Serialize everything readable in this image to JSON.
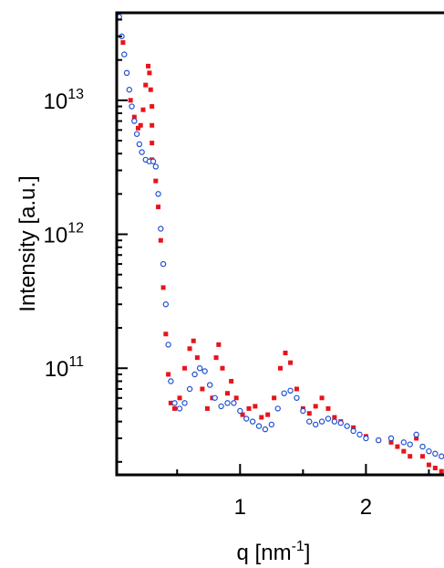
{
  "chart_data": {
    "type": "scatter",
    "y_label": "Intensity [a.u.]",
    "x_label": {
      "text": "q [nm",
      "superscript": "-1",
      "suffix": "]"
    },
    "xlim": [
      0.02,
      2.62
    ],
    "xticks": [
      1,
      2
    ],
    "x_minor_ticks": [
      0.5,
      1.5,
      2.5
    ],
    "ylim": [
      16000000000.0,
      45000000000000.0
    ],
    "log_y": true,
    "yticks": [
      {
        "value": 100000000000.0,
        "label": "10",
        "exponent": "11"
      },
      {
        "value": 1000000000000.0,
        "label": "10",
        "exponent": "12"
      },
      {
        "value": 10000000000000.0,
        "label": "10",
        "exponent": "13"
      }
    ],
    "y_minor_ticks": [
      20000000000.0,
      30000000000.0,
      40000000000.0,
      50000000000.0,
      60000000000.0,
      70000000000.0,
      80000000000.0,
      90000000000.0,
      200000000000.0,
      300000000000.0,
      400000000000.0,
      500000000000.0,
      600000000000.0,
      700000000000.0,
      800000000000.0,
      900000000000.0,
      2000000000000.0,
      3000000000000.0,
      4000000000000.0,
      5000000000000.0,
      6000000000000.0,
      7000000000000.0,
      8000000000000.0,
      9000000000000.0,
      20000000000000.0,
      30000000000000.0,
      40000000000000.0
    ],
    "series": [
      {
        "color": "#e8141a",
        "marker": "square",
        "x": [
          0.04,
          0.07,
          0.1,
          0.13,
          0.16,
          0.19,
          0.21,
          0.23,
          0.25,
          0.27,
          0.28,
          0.29,
          0.3,
          0.3,
          0.3,
          0.3,
          0.33,
          0.35,
          0.37,
          0.39,
          0.41,
          0.43,
          0.45,
          0.48,
          0.52,
          0.56,
          0.6,
          0.63,
          0.66,
          0.7,
          0.74,
          0.78,
          0.81,
          0.83,
          0.86,
          0.9,
          0.93,
          0.97,
          1.02,
          1.07,
          1.12,
          1.17,
          1.22,
          1.27,
          1.32,
          1.36,
          1.4,
          1.45,
          1.5,
          1.55,
          1.6,
          1.65,
          1.7,
          1.75,
          1.8,
          1.9,
          2.0,
          2.1,
          2.2,
          2.25,
          2.3,
          2.35,
          2.4,
          2.45,
          2.5,
          2.55,
          2.6
        ],
        "values": [
          42000000000000.0,
          27000000000000.0,
          16000000000000.0,
          10000000000000.0,
          7500000000000.0,
          6200000000000.0,
          6500000000000.0,
          8500000000000.0,
          13000000000000.0,
          18000000000000.0,
          16000000000000.0,
          12000000000000.0,
          9000000000000.0,
          6500000000000.0,
          4800000000000.0,
          3600000000000.0,
          2500000000000.0,
          1600000000000.0,
          900000000000.0,
          400000000000.0,
          180000000000.0,
          90000000000.0,
          55000000000.0,
          50000000000.0,
          60000000000.0,
          100000000000.0,
          140000000000.0,
          160000000000.0,
          120000000000.0,
          70000000000.0,
          50000000000.0,
          60000000000.0,
          120000000000.0,
          150000000000.0,
          100000000000.0,
          65000000000.0,
          80000000000.0,
          60000000000.0,
          45000000000.0,
          50000000000.0,
          52000000000.0,
          43000000000.0,
          45000000000.0,
          60000000000.0,
          100000000000.0,
          130000000000.0,
          110000000000.0,
          70000000000.0,
          50000000000.0,
          46000000000.0,
          52000000000.0,
          60000000000.0,
          50000000000.0,
          43000000000.0,
          40000000000.0,
          36000000000.0,
          31000000000.0,
          29000000000.0,
          28000000000.0,
          26000000000.0,
          24000000000.0,
          22000000000.0,
          30000000000.0,
          22000000000.0,
          19000000000.0,
          18000000000.0,
          17000000000.0
        ]
      },
      {
        "color": "#1f4fd1",
        "marker": "open-circle",
        "x": [
          0.04,
          0.06,
          0.08,
          0.1,
          0.12,
          0.14,
          0.16,
          0.18,
          0.2,
          0.22,
          0.25,
          0.28,
          0.31,
          0.33,
          0.35,
          0.37,
          0.39,
          0.41,
          0.43,
          0.45,
          0.48,
          0.52,
          0.56,
          0.6,
          0.64,
          0.68,
          0.72,
          0.76,
          0.8,
          0.85,
          0.9,
          0.95,
          1.0,
          1.05,
          1.1,
          1.15,
          1.2,
          1.25,
          1.3,
          1.35,
          1.4,
          1.45,
          1.5,
          1.55,
          1.6,
          1.65,
          1.7,
          1.75,
          1.8,
          1.85,
          1.9,
          1.95,
          2.0,
          2.1,
          2.2,
          2.3,
          2.35,
          2.4,
          2.45,
          2.5,
          2.55,
          2.6
        ],
        "values": [
          42000000000000.0,
          30000000000000.0,
          22000000000000.0,
          16000000000000.0,
          12000000000000.0,
          9000000000000.0,
          7000000000000.0,
          5600000000000.0,
          4700000000000.0,
          4100000000000.0,
          3600000000000.0,
          3500000000000.0,
          3500000000000.0,
          3200000000000.0,
          2000000000000.0,
          1100000000000.0,
          600000000000.0,
          300000000000.0,
          150000000000.0,
          80000000000.0,
          55000000000.0,
          50000000000.0,
          55000000000.0,
          70000000000.0,
          90000000000.0,
          100000000000.0,
          95000000000.0,
          75000000000.0,
          60000000000.0,
          52000000000.0,
          55000000000.0,
          55000000000.0,
          48000000000.0,
          42000000000.0,
          40000000000.0,
          37000000000.0,
          35000000000.0,
          38000000000.0,
          50000000000.0,
          65000000000.0,
          68000000000.0,
          60000000000.0,
          48000000000.0,
          40000000000.0,
          38000000000.0,
          40000000000.0,
          42000000000.0,
          40000000000.0,
          39000000000.0,
          37000000000.0,
          34000000000.0,
          32000000000.0,
          30000000000.0,
          29000000000.0,
          30000000000.0,
          28000000000.0,
          27000000000.0,
          32000000000.0,
          26000000000.0,
          24000000000.0,
          23000000000.0,
          22000000000.0
        ]
      }
    ]
  }
}
